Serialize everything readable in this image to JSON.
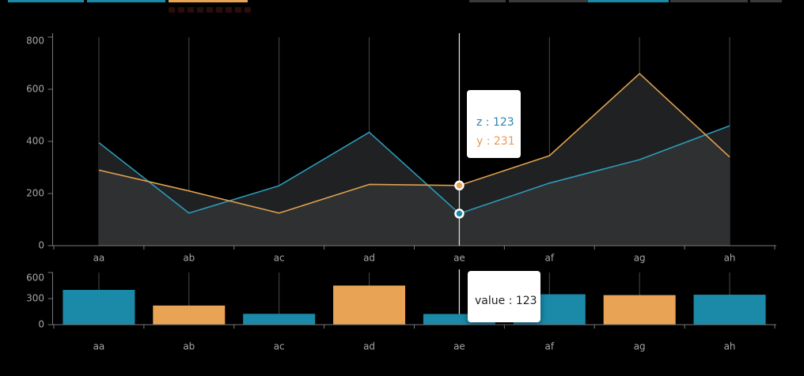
{
  "toolbar": {
    "left_items": [
      {
        "name": "legend-strip-teal-1",
        "color": "#1a8aa8"
      },
      {
        "name": "legend-strip-teal-2",
        "color": "#1a8aa8"
      },
      {
        "name": "legend-strip-orange",
        "color": "#e8a355"
      }
    ],
    "right_items": [
      {
        "name": "toolbar-button-1",
        "color": "#3a3a3c"
      },
      {
        "name": "toolbar-button-2",
        "color": "#3a3a3c"
      },
      {
        "name": "toolbar-button-active",
        "color": "#1a8aa8"
      },
      {
        "name": "toolbar-button-4",
        "color": "#3a3a3c"
      },
      {
        "name": "toolbar-button-5",
        "color": "#3a3a3c"
      }
    ]
  },
  "tooltips": {
    "line_chart": {
      "lines": [
        {
          "text": "z : 123",
          "color": "#2e86ad"
        },
        {
          "text": "y : 231",
          "color": "#e89a55"
        }
      ]
    },
    "bar_chart": {
      "text": "value : 123",
      "color": "#1e1e1e"
    }
  },
  "chart_data": [
    {
      "type": "line",
      "title": "",
      "categories": [
        "aa",
        "ab",
        "ac",
        "ad",
        "ae",
        "af",
        "ag",
        "ah"
      ],
      "series": [
        {
          "name": "z",
          "color": "#2e9ab8",
          "dot_color": "#1a8aa8",
          "values": [
            395,
            125,
            230,
            435,
            123,
            240,
            330,
            460
          ]
        },
        {
          "name": "y",
          "color": "#dfa04f",
          "dot_color": "#e8a355",
          "values": [
            290,
            210,
            125,
            235,
            231,
            345,
            660,
            340
          ]
        }
      ],
      "ylim": [
        0,
        800
      ],
      "yticks": [
        0,
        200,
        400,
        600,
        800
      ],
      "grid": "vertical-only",
      "area": true,
      "highlight": {
        "index": 4,
        "z": 123,
        "y": 231
      }
    },
    {
      "type": "bar",
      "title": "",
      "categories": [
        "aa",
        "ab",
        "ac",
        "ad",
        "ae",
        "af",
        "ag",
        "ah"
      ],
      "values": [
        400,
        220,
        125,
        450,
        123,
        350,
        340,
        345
      ],
      "bar_colors": [
        "#1a8aa8",
        "#e8a355",
        "#1a8aa8",
        "#e8a355",
        "#1a8aa8",
        "#1a8aa8",
        "#e8a355",
        "#1a8aa8"
      ],
      "ylim": [
        0,
        600
      ],
      "yticks": [
        0,
        300,
        600
      ],
      "grid": "vertical-only",
      "highlight": {
        "index": 4,
        "value": 123
      }
    }
  ],
  "style_colors": {
    "background": "#000000",
    "gridline": "#47494b",
    "axis_line": "#77797c",
    "axis_label": "#a2a5a8",
    "axis_pointer": "#d9d9d9",
    "area_single": "#1f2123",
    "area_overlap": "#2e3032",
    "tooltip_bg": "#ffffff"
  }
}
